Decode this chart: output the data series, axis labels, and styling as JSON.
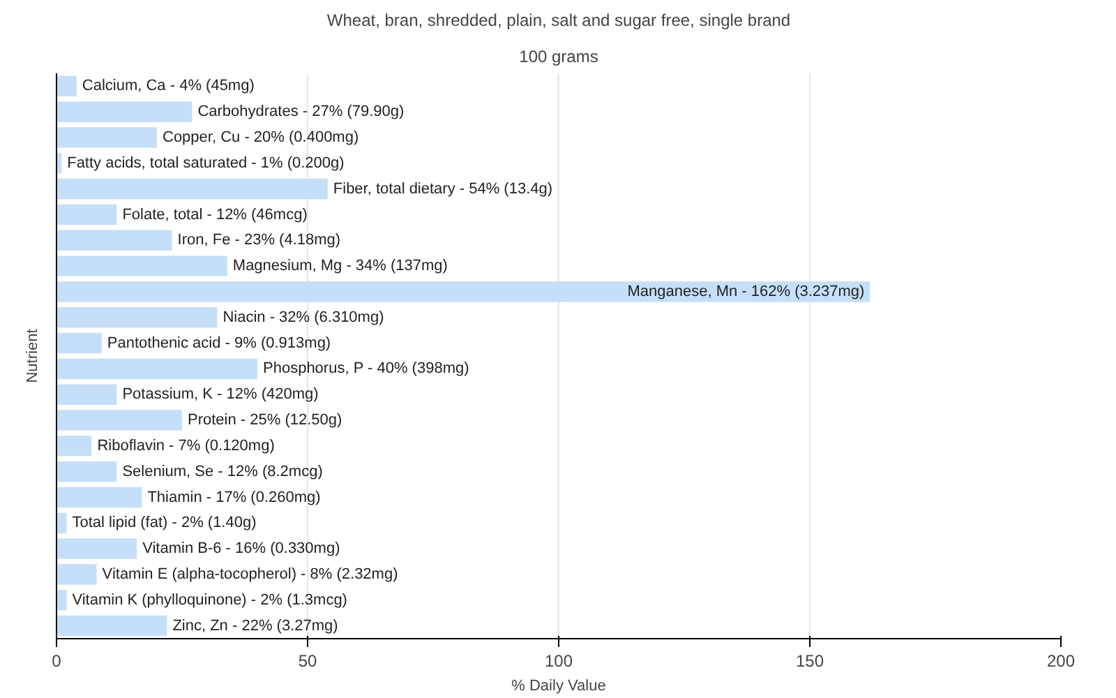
{
  "chart_data": {
    "type": "bar",
    "orientation": "horizontal",
    "title": "Wheat, bran, shredded, plain, salt and sugar free, single brand",
    "subtitle": "100 grams",
    "xlabel": "% Daily Value",
    "ylabel": "Nutrient",
    "categories": [
      "Calcium, Ca - 4% (45mg)",
      "Carbohydrates - 27% (79.90g)",
      "Copper, Cu - 20% (0.400mg)",
      "Fatty acids, total saturated - 1% (0.200g)",
      "Fiber, total dietary - 54% (13.4g)",
      "Folate, total - 12% (46mcg)",
      "Iron, Fe - 23% (4.18mg)",
      "Magnesium, Mg - 34% (137mg)",
      "Manganese, Mn - 162% (3.237mg)",
      "Niacin - 32% (6.310mg)",
      "Pantothenic acid - 9% (0.913mg)",
      "Phosphorus, P - 40% (398mg)",
      "Potassium, K - 12% (420mg)",
      "Protein - 25% (12.50g)",
      "Riboflavin - 7% (0.120mg)",
      "Selenium, Se - 12% (8.2mcg)",
      "Thiamin - 17% (0.260mg)",
      "Total lipid (fat) - 2% (1.40g)",
      "Vitamin B-6 - 16% (0.330mg)",
      "Vitamin E (alpha-tocopherol) - 8% (2.32mg)",
      "Vitamin K (phylloquinone) - 2% (1.3mcg)",
      "Zinc, Zn - 22% (3.27mg)"
    ],
    "values": [
      4,
      27,
      20,
      1,
      54,
      12,
      23,
      34,
      162,
      32,
      9,
      40,
      12,
      25,
      7,
      12,
      17,
      2,
      16,
      8,
      2,
      22
    ],
    "color": "#c6dff8",
    "xlim": [
      0,
      200
    ],
    "xticks": [
      0,
      50,
      100,
      150,
      200
    ],
    "grid": "x"
  }
}
